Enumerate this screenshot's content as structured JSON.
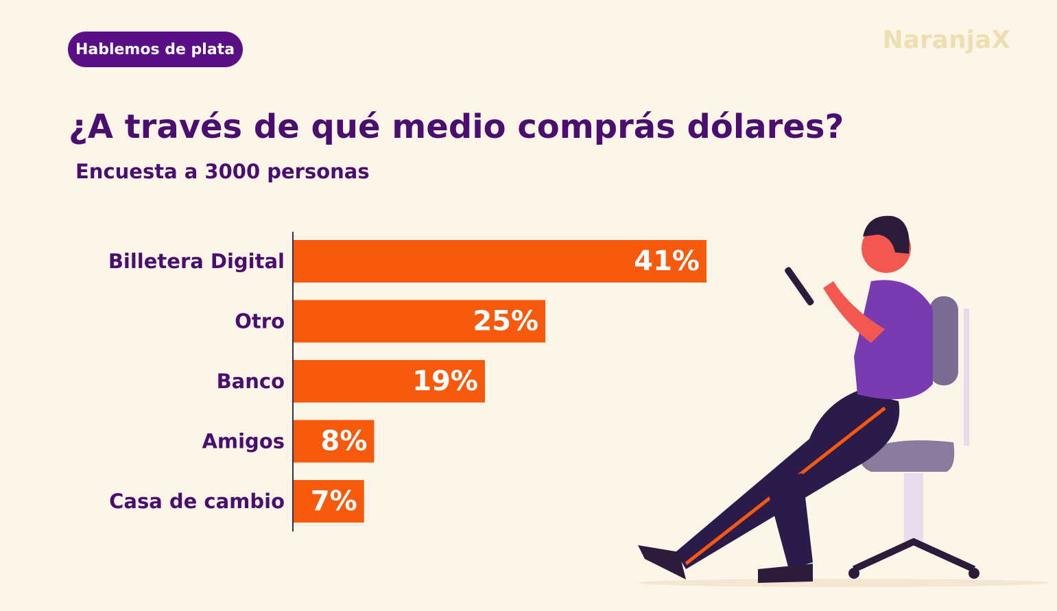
{
  "badge": "Hablemos de plata",
  "brand": "NaranjaX",
  "chart_data": {
    "type": "bar",
    "orientation": "horizontal",
    "title": "¿A través de qué medio comprás dólares?",
    "subtitle": "Encuesta a 3000 personas",
    "categories": [
      "Billetera Digital",
      "Otro",
      "Banco",
      "Amigos",
      "Casa de cambio"
    ],
    "values": [
      41,
      25,
      19,
      8,
      7
    ],
    "value_labels": [
      "41%",
      "25%",
      "19%",
      "8%",
      "7%"
    ],
    "color": "#f75a0c"
  }
}
